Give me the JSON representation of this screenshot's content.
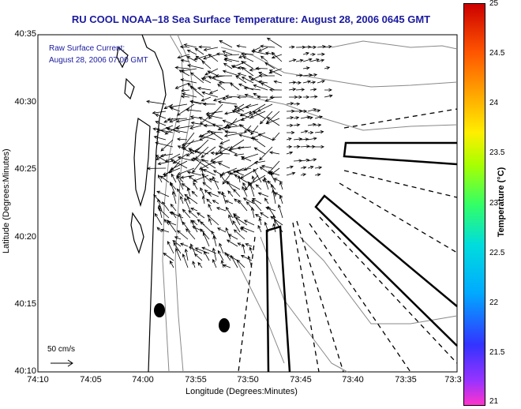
{
  "title": "RU COOL  NOAA–18  Sea Surface Temperature:  August 28, 2006 0645 GMT",
  "annotation": {
    "line1": "Raw Surface Current:",
    "line2": "August 28, 2006 07:00 GMT"
  },
  "scale_label": "50 cm/s",
  "axes": {
    "xlabel": "Longitude (Degrees:Minutes)",
    "ylabel": "Latitude (Degrees:Minutes)",
    "xticks": [
      "74:10",
      "74:05",
      "74:00",
      "73:55",
      "73:50",
      "73:45",
      "73:40",
      "73:35",
      "73:3"
    ],
    "yticks": [
      "40:35",
      "40:30",
      "40:25",
      "40:20",
      "40:15",
      "40:10"
    ]
  },
  "colorbar": {
    "label": "Temperature (°C)",
    "ticks": [
      "25",
      "24.5",
      "24",
      "23.5",
      "23",
      "22.5",
      "22",
      "21.5",
      "21"
    ],
    "min": 21,
    "max": 25
  },
  "colors": {
    "title": "#1a1aa0",
    "land": "#ffffff",
    "coast": "#000000",
    "bathymetry": "#888888"
  },
  "map_features": {
    "current_vectors": "black arrows over the central shelf area",
    "markers": "two black filled ellipses near the coast",
    "shipping_lanes": "solid and dashed black lines in the east"
  }
}
